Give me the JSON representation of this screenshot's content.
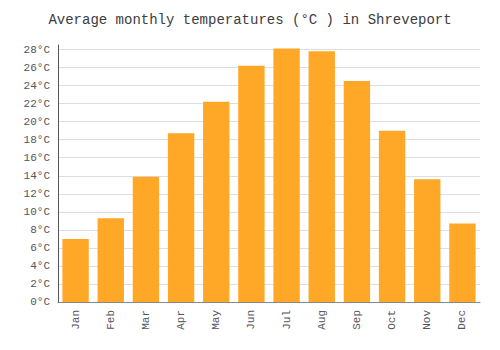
{
  "chart_data": {
    "type": "bar",
    "title": "Average monthly temperatures (°C ) in Shreveport",
    "categories": [
      "Jan",
      "Feb",
      "Mar",
      "Apr",
      "May",
      "Jun",
      "Jul",
      "Aug",
      "Sep",
      "Oct",
      "Nov",
      "Dec"
    ],
    "values": [
      7.0,
      9.3,
      13.9,
      18.7,
      22.2,
      26.2,
      28.1,
      27.8,
      24.5,
      19.0,
      13.6,
      8.7
    ],
    "color": "#FFA726",
    "ylim": [
      0,
      28.5
    ],
    "yticks": [
      {
        "value": 0,
        "label": "0°C"
      },
      {
        "value": 2,
        "label": "2°C"
      },
      {
        "value": 4,
        "label": "4°C"
      },
      {
        "value": 6,
        "label": "6°C"
      },
      {
        "value": 8,
        "label": "8°C"
      },
      {
        "value": 10,
        "label": "10°C"
      },
      {
        "value": 12,
        "label": "12°C"
      },
      {
        "value": 14,
        "label": "14°C"
      },
      {
        "value": 16,
        "label": "16°C"
      },
      {
        "value": 18,
        "label": "18°C"
      },
      {
        "value": 20,
        "label": "20°C"
      },
      {
        "value": 22,
        "label": "22°C"
      },
      {
        "value": 24,
        "label": "24°C"
      },
      {
        "value": 26,
        "label": "26°C"
      },
      {
        "value": 28,
        "label": "28°C"
      }
    ],
    "grid": true
  }
}
